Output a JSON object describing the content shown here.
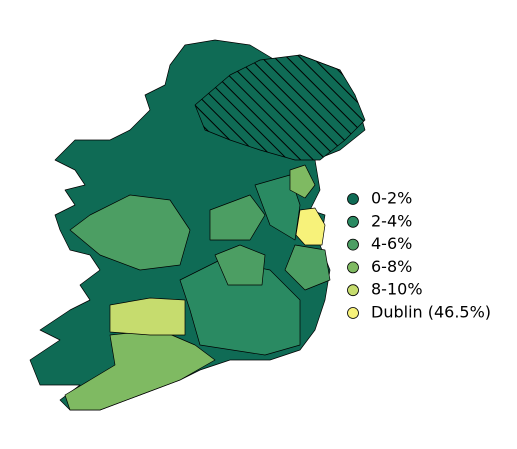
{
  "legend": [
    {
      "label": "0-2%",
      "color": "#0f6b55"
    },
    {
      "label": "2-4%",
      "color": "#2a8a62"
    },
    {
      "label": "4-6%",
      "color": "#4c9e63"
    },
    {
      "label": "6-8%",
      "color": "#7fba62"
    },
    {
      "label": "8-10%",
      "color": "#c6dc6e"
    },
    {
      "label": "Dublin (46.5%)",
      "color": "#f7f27a"
    }
  ]
}
